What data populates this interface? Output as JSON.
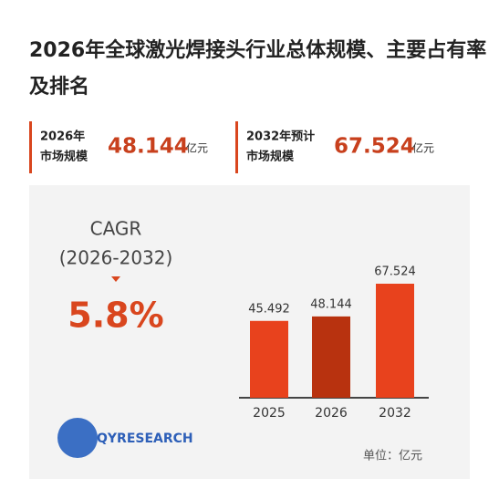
{
  "header": {
    "title": "2026年全球激光焊接头行业总体规模、主要占有率及排名"
  },
  "kpis": [
    {
      "label": [
        "2026年",
        "市场规模"
      ],
      "value": "48.144",
      "unit": "亿元"
    },
    {
      "label": [
        "2032年预计",
        "市场规模"
      ],
      "value": "67.524",
      "unit": "亿元"
    }
  ],
  "cagr": {
    "label": "CAGR",
    "period": "(2026-2032)",
    "value": "5.8%"
  },
  "logo": "QYRESEARCH",
  "unit_note": "单位：亿元",
  "chart_data": {
    "type": "bar",
    "categories": [
      "2025",
      "2026",
      "2032"
    ],
    "values": [
      45.492,
      48.144,
      67.524
    ],
    "colors": [
      "#e8421d",
      "#b8320f",
      "#e8421d"
    ]
  }
}
